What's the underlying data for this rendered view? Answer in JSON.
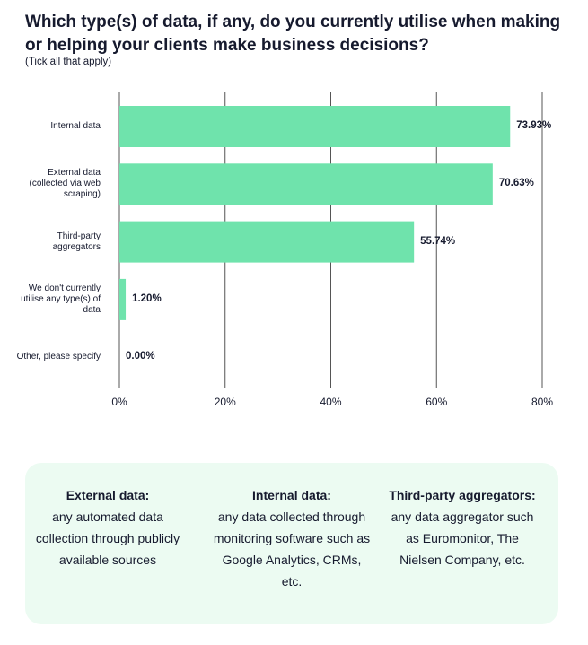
{
  "header": {
    "title": "Which type(s) of data, if any, do you currently utilise when making or helping your clients make business decisions?",
    "subtitle": "(Tick all that apply)"
  },
  "chart_data": {
    "type": "bar",
    "orientation": "horizontal",
    "categories": [
      "Internal data",
      "External data (collected via web scraping)",
      "Third-party aggregators",
      "We don't currently utilise any type(s) of data",
      "Other, please specify"
    ],
    "values": [
      73.93,
      70.63,
      55.74,
      1.2,
      0.0
    ],
    "value_labels": [
      "73.93%",
      "70.63%",
      "55.74%",
      "1.20%",
      "0.00%"
    ],
    "xlim": [
      0,
      80
    ],
    "ticks": [
      0,
      20,
      40,
      60,
      80
    ],
    "tick_labels": [
      "0%",
      "20%",
      "40%",
      "60%",
      "80%"
    ],
    "bar_color": "#6fe3ac",
    "grid": true
  },
  "definitions": [
    {
      "term": "External data:",
      "text": "any automated data collection through publicly available sources"
    },
    {
      "term": "Internal data:",
      "text": "any data collected through monitoring software such as Google Analytics, CRMs, etc."
    },
    {
      "term": "Third-party aggregators:",
      "text": "any data aggregator such as Euromonitor, The Nielsen Company, etc."
    }
  ],
  "colors": {
    "panel_bg": "#ecfbf2",
    "text": "#161a2e",
    "gridline": "#555555"
  }
}
